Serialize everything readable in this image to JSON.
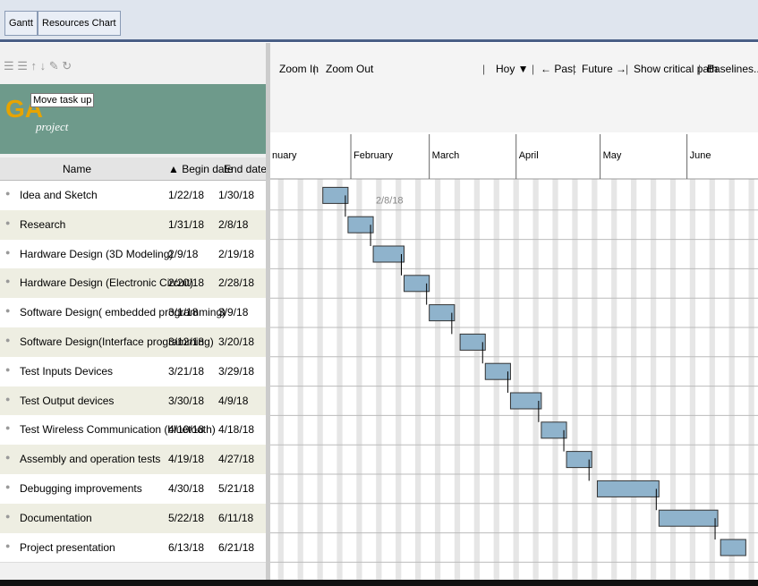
{
  "tabs": [
    "Gantt",
    "Resources Chart"
  ],
  "tooltip": "Move task up",
  "logo_text": "project",
  "toolbar": [
    "Zoom In",
    "Zoom Out",
    "Hoy ▼",
    "← Past",
    "Future →",
    "Show critical path",
    "Baselines..."
  ],
  "columns": [
    "Name",
    "Begin date",
    "End date"
  ],
  "months": [
    "nuary",
    "February",
    "March",
    "April",
    "May",
    "June"
  ],
  "annotation": "2/8/18",
  "tasks": [
    [
      "Idea and Sketch",
      "1/22/18",
      "1/30/18"
    ],
    [
      "Research",
      "1/31/18",
      "2/8/18"
    ],
    [
      "Hardware Design (3D Modeling)",
      "2/9/18",
      "2/19/18"
    ],
    [
      "Hardware Design (Electronic Circuit)",
      "2/20/18",
      "2/28/18"
    ],
    [
      "Software Design( embedded programming)",
      "3/1/18",
      "3/9/18"
    ],
    [
      "Software Design(Interface programming)",
      "3/12/18",
      "3/20/18"
    ],
    [
      "Test Inputs Devices",
      "3/21/18",
      "3/29/18"
    ],
    [
      "Test Output devices",
      "3/30/18",
      "4/9/18"
    ],
    [
      "Test Wireless Communication (bluetooth)",
      "4/10/18",
      "4/18/18"
    ],
    [
      "Assembly and operation tests",
      "4/19/18",
      "4/27/18"
    ],
    [
      "Debugging improvements",
      "4/30/18",
      "5/21/18"
    ],
    [
      "Documentation",
      "5/22/18",
      "6/11/18"
    ],
    [
      "Project presentation",
      "6/13/18",
      "6/21/18"
    ]
  ]
}
